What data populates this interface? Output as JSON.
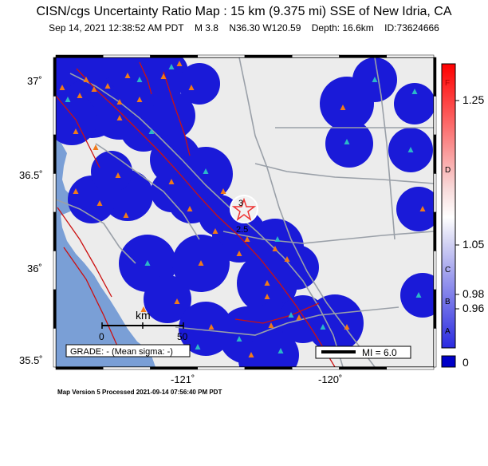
{
  "header": {
    "title": "CISN/cgs Uncertainty Ratio Map : 15 km (9.375 mi) SSE of New Idria, CA",
    "date": "Sep 14, 2021 12:38:52 AM PDT",
    "magnitude": "M 3.8",
    "coords": "N36.30 W120.59",
    "depth": "Depth: 16.6km",
    "event_id": "ID:73624666"
  },
  "axes": {
    "lat_labels": [
      "37˚",
      "36.5˚",
      "36˚",
      "35.5˚"
    ],
    "lon_labels": [
      "-121˚",
      "-120˚"
    ]
  },
  "scale_bar": {
    "unit": "km",
    "ticks": [
      "0",
      "50"
    ]
  },
  "grade_box": "GRADE: - (Mean sigma: -)",
  "legend": {
    "mi_label": "MI = 6.0"
  },
  "epicenter_labels": {
    "top": "3",
    "bottom": "2.5"
  },
  "colorbar": {
    "letters": [
      "F",
      "D",
      "C",
      "B",
      "A"
    ],
    "values": [
      "1.25",
      "1.05",
      "0.98",
      "0.96",
      "0"
    ]
  },
  "footer": "Map Version 5 Processed 2021-09-14 07:56:40 PM PDT",
  "colors": {
    "uncertainty_blue": "#1a1ad8",
    "ocean": "#7a9fd6",
    "land": "#ececec",
    "fault": "#cc1111",
    "highway": "#9aa0a8",
    "station_cyan": "#2bb7c8",
    "station_orange": "#f07a1a",
    "epicenter": "#ee3333"
  }
}
